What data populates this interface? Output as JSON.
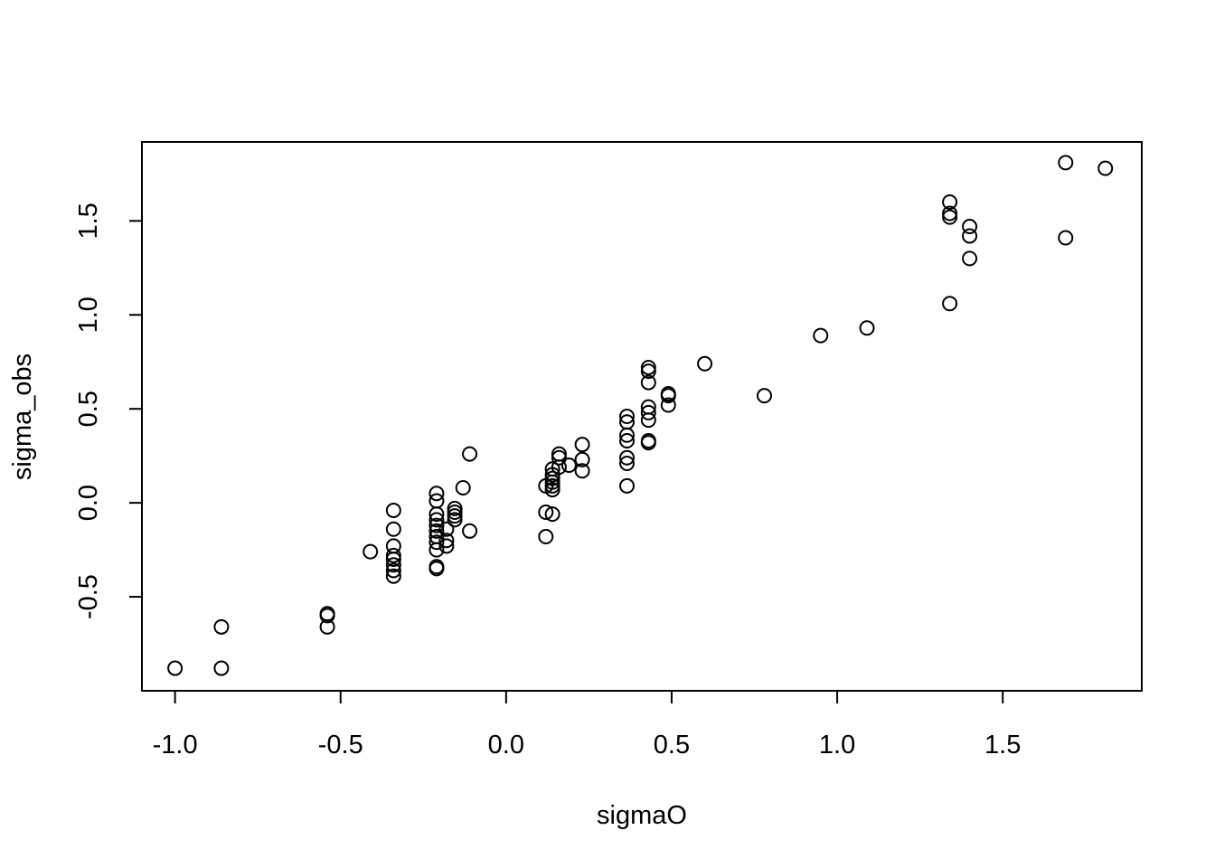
{
  "chart_data": {
    "type": "scatter",
    "title": "",
    "xlabel": "sigmaO",
    "ylabel": "sigma_obs",
    "xlim": [
      -1.1,
      1.92
    ],
    "ylim": [
      -1.0,
      1.92
    ],
    "x_ticks": [
      -1.0,
      -0.5,
      0.0,
      0.5,
      1.0,
      1.5
    ],
    "y_ticks": [
      -0.5,
      0.0,
      0.5,
      1.0,
      1.5
    ],
    "x_tick_labels": [
      "-1.0",
      "-0.5",
      "0.0",
      "0.5",
      "1.0",
      "1.5"
    ],
    "y_tick_labels": [
      "-0.5",
      "0.0",
      "0.5",
      "1.0",
      "1.5"
    ],
    "grid": false,
    "legend": "none",
    "marker": "open-circle",
    "color": "#000000",
    "points": [
      [
        -1.0,
        -0.88
      ],
      [
        -0.86,
        -0.88
      ],
      [
        -0.86,
        -0.66
      ],
      [
        -0.54,
        -0.59
      ],
      [
        -0.54,
        -0.6
      ],
      [
        -0.54,
        -0.66
      ],
      [
        -0.41,
        -0.26
      ],
      [
        -0.34,
        -0.04
      ],
      [
        -0.34,
        -0.14
      ],
      [
        -0.34,
        -0.23
      ],
      [
        -0.34,
        -0.28
      ],
      [
        -0.34,
        -0.3
      ],
      [
        -0.34,
        -0.33
      ],
      [
        -0.34,
        -0.36
      ],
      [
        -0.34,
        -0.39
      ],
      [
        -0.21,
        0.05
      ],
      [
        -0.21,
        0.01
      ],
      [
        -0.21,
        -0.06
      ],
      [
        -0.21,
        -0.09
      ],
      [
        -0.21,
        -0.12
      ],
      [
        -0.21,
        -0.15
      ],
      [
        -0.21,
        -0.18
      ],
      [
        -0.21,
        -0.21
      ],
      [
        -0.21,
        -0.25
      ],
      [
        -0.21,
        -0.34
      ],
      [
        -0.21,
        -0.35
      ],
      [
        -0.18,
        -0.14
      ],
      [
        -0.18,
        -0.2
      ],
      [
        -0.18,
        -0.23
      ],
      [
        -0.155,
        -0.03
      ],
      [
        -0.155,
        -0.05
      ],
      [
        -0.155,
        -0.07
      ],
      [
        -0.155,
        -0.09
      ],
      [
        -0.13,
        0.08
      ],
      [
        -0.11,
        0.26
      ],
      [
        -0.11,
        -0.15
      ],
      [
        0.12,
        0.09
      ],
      [
        0.12,
        -0.05
      ],
      [
        0.12,
        -0.18
      ],
      [
        0.14,
        0.18
      ],
      [
        0.14,
        0.15
      ],
      [
        0.14,
        0.13
      ],
      [
        0.14,
        0.11
      ],
      [
        0.14,
        0.09
      ],
      [
        0.14,
        0.07
      ],
      [
        0.14,
        -0.06
      ],
      [
        0.16,
        0.26
      ],
      [
        0.16,
        0.24
      ],
      [
        0.16,
        0.19
      ],
      [
        0.19,
        0.2
      ],
      [
        0.23,
        0.31
      ],
      [
        0.23,
        0.23
      ],
      [
        0.23,
        0.17
      ],
      [
        0.365,
        0.46
      ],
      [
        0.365,
        0.43
      ],
      [
        0.365,
        0.36
      ],
      [
        0.365,
        0.33
      ],
      [
        0.365,
        0.24
      ],
      [
        0.365,
        0.21
      ],
      [
        0.365,
        0.09
      ],
      [
        0.43,
        0.72
      ],
      [
        0.43,
        0.7
      ],
      [
        0.43,
        0.64
      ],
      [
        0.43,
        0.51
      ],
      [
        0.43,
        0.48
      ],
      [
        0.43,
        0.44
      ],
      [
        0.43,
        0.33
      ],
      [
        0.43,
        0.32
      ],
      [
        0.49,
        0.58
      ],
      [
        0.49,
        0.57
      ],
      [
        0.49,
        0.52
      ],
      [
        0.6,
        0.74
      ],
      [
        0.78,
        0.57
      ],
      [
        0.95,
        0.89
      ],
      [
        1.09,
        0.93
      ],
      [
        1.34,
        1.6
      ],
      [
        1.34,
        1.54
      ],
      [
        1.34,
        1.52
      ],
      [
        1.34,
        1.06
      ],
      [
        1.4,
        1.47
      ],
      [
        1.4,
        1.42
      ],
      [
        1.4,
        1.3
      ],
      [
        1.69,
        1.81
      ],
      [
        1.69,
        1.41
      ],
      [
        1.81,
        1.78
      ]
    ]
  }
}
